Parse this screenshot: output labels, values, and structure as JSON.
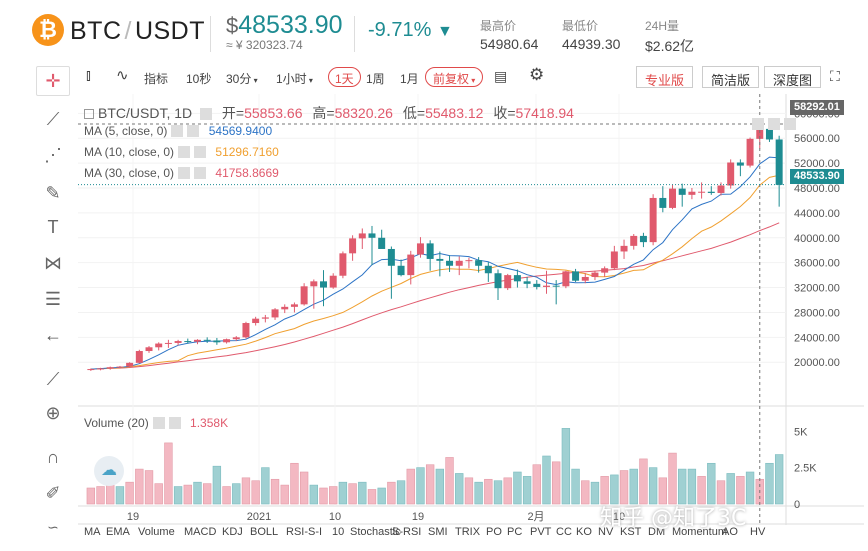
{
  "header": {
    "coin_icon": "bitcoin-icon",
    "coin_symbol": "₿",
    "base": "BTC",
    "quote": "USDT",
    "price_prefix": "$",
    "price": "48533.90",
    "price_cny": "≈ ¥ 320323.74",
    "change": "-9.71%",
    "change_arrow": "▼",
    "high_label": "最高价",
    "high_value": "54980.64",
    "low_label": "最低价",
    "low_value": "44939.30",
    "vol_label": "24H量",
    "vol_value": "$2.62亿"
  },
  "toolbar": {
    "indicators": "指标",
    "s10": "10秒",
    "m30": "30分",
    "h1": "1小时",
    "d1": "1天",
    "w1": "1周",
    "mo1": "1月",
    "adjust": "前复权",
    "pro": "专业版",
    "simple": "简洁版",
    "depth": "深度图"
  },
  "legend": {
    "title": "BTC/USDT, 1D",
    "open_label": "开=",
    "open": "55853.66",
    "high_label": "高=",
    "high": "58320.26",
    "low_label": "低=",
    "low": "55483.12",
    "close_label": "收=",
    "close": "57418.94",
    "ma5_name": "MA (5, close, 0)",
    "ma5_value": "54569.9400",
    "ma10_name": "MA (10, close, 0)",
    "ma10_value": "51296.7160",
    "ma30_name": "MA (30, close, 0)",
    "ma30_value": "41758.8669",
    "volume_name": "Volume (20)",
    "volume_value": "1.358K"
  },
  "axis": {
    "price_ticks": [
      "60000.00",
      "56000.00",
      "52000.00",
      "48000.00",
      "44000.00",
      "40000.00",
      "36000.00",
      "32000.00",
      "28000.00",
      "24000.00",
      "20000.00"
    ],
    "price_tick_values": [
      60000,
      56000,
      52000,
      48000,
      44000,
      40000,
      36000,
      32000,
      28000,
      24000,
      20000
    ],
    "crosshair_price": "58292.01",
    "last_price": "48533.90",
    "vol_ticks": [
      "5K",
      "2.5K",
      "0"
    ],
    "date_ticks": [
      "19",
      "2021",
      "10",
      "19",
      "2月",
      "10"
    ]
  },
  "indicator_tabs": [
    "MA",
    "EMA",
    "Volume",
    "MACD",
    "KDJ",
    "BOLL",
    "RSI-S-I",
    "10",
    "Stochastic",
    "S-RSI",
    "SMI",
    "TRIX",
    "PO",
    "PC",
    "PVT",
    "CC",
    "KO",
    "NV",
    "KST",
    "DM",
    "Momentum",
    "AO",
    "HV"
  ],
  "watermark": "知乎 @知了3C",
  "colors": {
    "up": "#e05a6d",
    "down": "#1e8c92",
    "ma5": "#2d74c6",
    "ma10": "#f0a030",
    "ma30": "#e05a6d",
    "vol_up": "#f3b8c2",
    "vol_down": "#9fd0d2"
  },
  "chart_data": {
    "type": "candlestick",
    "ylim": [
      18000,
      61000
    ],
    "vol_ylim": [
      0,
      5500
    ],
    "candles": [
      [
        18800,
        19000,
        18600,
        18900
      ],
      [
        18900,
        19100,
        18700,
        19000
      ],
      [
        19000,
        19300,
        18800,
        19200
      ],
      [
        19200,
        19400,
        19000,
        19300
      ],
      [
        19300,
        20000,
        19200,
        19900
      ],
      [
        19900,
        22000,
        19800,
        21800
      ],
      [
        21800,
        22600,
        21500,
        22400
      ],
      [
        22400,
        23200,
        21900,
        23000
      ],
      [
        23000,
        23600,
        22300,
        23100
      ],
      [
        23100,
        23600,
        22700,
        23400
      ],
      [
        23400,
        23800,
        23000,
        23300
      ],
      [
        23300,
        23700,
        22900,
        23600
      ],
      [
        23600,
        24000,
        23100,
        23500
      ],
      [
        23500,
        23900,
        22800,
        23200
      ],
      [
        23200,
        23800,
        23000,
        23700
      ],
      [
        23700,
        24200,
        23400,
        24000
      ],
      [
        24000,
        26500,
        23800,
        26300
      ],
      [
        26300,
        27300,
        25900,
        27000
      ],
      [
        27000,
        27600,
        26400,
        27200
      ],
      [
        27200,
        28700,
        26800,
        28500
      ],
      [
        28500,
        29300,
        27900,
        28900
      ],
      [
        28900,
        29600,
        28000,
        29300
      ],
      [
        29300,
        32700,
        29100,
        32200
      ],
      [
        32200,
        33300,
        28600,
        33000
      ],
      [
        33000,
        34800,
        29000,
        32000
      ],
      [
        32000,
        34300,
        31800,
        33900
      ],
      [
        33900,
        37800,
        33500,
        37500
      ],
      [
        37500,
        40400,
        36300,
        39900
      ],
      [
        39900,
        41500,
        38200,
        40700
      ],
      [
        40700,
        41900,
        35600,
        40000
      ],
      [
        40000,
        41300,
        38500,
        38200
      ],
      [
        38200,
        38600,
        30200,
        35500
      ],
      [
        35500,
        36500,
        33800,
        34000
      ],
      [
        34000,
        37900,
        32500,
        37300
      ],
      [
        37300,
        40100,
        36800,
        39100
      ],
      [
        39100,
        39600,
        34700,
        36600
      ],
      [
        36600,
        37800,
        33800,
        36300
      ],
      [
        36300,
        37200,
        34500,
        35500
      ],
      [
        35500,
        37000,
        34000,
        36300
      ],
      [
        36300,
        36800,
        35100,
        36400
      ],
      [
        36400,
        36900,
        34400,
        35500
      ],
      [
        35500,
        36100,
        32900,
        34300
      ],
      [
        34300,
        34900,
        30000,
        31900
      ],
      [
        31900,
        34200,
        31600,
        34000
      ],
      [
        34000,
        34900,
        32000,
        33000
      ],
      [
        33000,
        33700,
        31900,
        32600
      ],
      [
        32600,
        33200,
        31700,
        32100
      ],
      [
        32100,
        34700,
        31000,
        32300
      ],
      [
        32300,
        33200,
        29300,
        32200
      ],
      [
        32200,
        34700,
        31900,
        34600
      ],
      [
        34600,
        35000,
        32900,
        33100
      ],
      [
        33100,
        34300,
        32700,
        33700
      ],
      [
        33700,
        34700,
        33200,
        34400
      ],
      [
        34400,
        35400,
        33700,
        35100
      ],
      [
        35100,
        38700,
        34800,
        37800
      ],
      [
        37800,
        39700,
        36600,
        38700
      ],
      [
        38700,
        40600,
        38100,
        40300
      ],
      [
        40300,
        40800,
        38500,
        39300
      ],
      [
        39300,
        47000,
        38800,
        46400
      ],
      [
        46400,
        48300,
        44100,
        44800
      ],
      [
        44800,
        48600,
        44600,
        47900
      ],
      [
        47900,
        48700,
        45000,
        46900
      ],
      [
        46900,
        48000,
        46200,
        47400
      ],
      [
        47400,
        48900,
        46300,
        47400
      ],
      [
        47400,
        48300,
        46900,
        47200
      ],
      [
        47200,
        48900,
        46800,
        48400
      ],
      [
        48400,
        52600,
        47900,
        52100
      ],
      [
        52100,
        52600,
        49900,
        51600
      ],
      [
        51600,
        56100,
        51300,
        55900
      ],
      [
        55900,
        58300,
        54300,
        57500
      ],
      [
        57500,
        58300,
        55400,
        55800
      ],
      [
        55800,
        56400,
        45000,
        48500
      ]
    ],
    "volumes": [
      [
        1100,
        "up"
      ],
      [
        1200,
        "up"
      ],
      [
        1300,
        "up"
      ],
      [
        1200,
        "down"
      ],
      [
        1500,
        "up"
      ],
      [
        2400,
        "up"
      ],
      [
        2300,
        "up"
      ],
      [
        1400,
        "up"
      ],
      [
        4200,
        "up"
      ],
      [
        1200,
        "down"
      ],
      [
        1300,
        "up"
      ],
      [
        1500,
        "down"
      ],
      [
        1400,
        "up"
      ],
      [
        2600,
        "down"
      ],
      [
        1200,
        "up"
      ],
      [
        1400,
        "down"
      ],
      [
        1800,
        "up"
      ],
      [
        1600,
        "up"
      ],
      [
        2500,
        "down"
      ],
      [
        1700,
        "up"
      ],
      [
        1300,
        "up"
      ],
      [
        2800,
        "up"
      ],
      [
        2200,
        "up"
      ],
      [
        1300,
        "down"
      ],
      [
        1100,
        "up"
      ],
      [
        1200,
        "up"
      ],
      [
        1500,
        "down"
      ],
      [
        1400,
        "up"
      ],
      [
        1500,
        "down"
      ],
      [
        1000,
        "up"
      ],
      [
        1100,
        "down"
      ],
      [
        1500,
        "up"
      ],
      [
        1600,
        "down"
      ],
      [
        2400,
        "up"
      ],
      [
        2500,
        "down"
      ],
      [
        2700,
        "up"
      ],
      [
        2400,
        "down"
      ],
      [
        3200,
        "up"
      ],
      [
        2100,
        "down"
      ],
      [
        1800,
        "up"
      ],
      [
        1500,
        "down"
      ],
      [
        1700,
        "up"
      ],
      [
        1600,
        "down"
      ],
      [
        1800,
        "up"
      ],
      [
        2200,
        "down"
      ],
      [
        1900,
        "down"
      ],
      [
        2700,
        "up"
      ],
      [
        3300,
        "down"
      ],
      [
        2900,
        "up"
      ],
      [
        5200,
        "down"
      ],
      [
        2400,
        "down"
      ],
      [
        1600,
        "up"
      ],
      [
        1500,
        "down"
      ],
      [
        1900,
        "up"
      ],
      [
        2000,
        "down"
      ],
      [
        2300,
        "up"
      ],
      [
        2400,
        "down"
      ],
      [
        3100,
        "up"
      ],
      [
        2500,
        "down"
      ],
      [
        1800,
        "up"
      ],
      [
        3500,
        "up"
      ],
      [
        2400,
        "down"
      ],
      [
        2400,
        "down"
      ],
      [
        1900,
        "up"
      ],
      [
        2800,
        "down"
      ],
      [
        1600,
        "up"
      ],
      [
        2100,
        "down"
      ],
      [
        1900,
        "up"
      ],
      [
        2200,
        "down"
      ],
      [
        1700,
        "up"
      ],
      [
        2800,
        "down"
      ],
      [
        3400,
        "down"
      ]
    ],
    "ma5": [
      18900,
      18980,
      19080,
      19170,
      19340,
      19760,
      20460,
      21190,
      22010,
      22720,
      23040,
      23300,
      23380,
      23400,
      23460,
      23480,
      23700,
      24440,
      25280,
      26010,
      26940,
      27560,
      28460,
      29320,
      29960,
      30930,
      31760,
      32930,
      34040,
      35680,
      36500,
      36570,
      36320,
      36790,
      37440,
      37140,
      37470,
      37130,
      37080,
      36980,
      36400,
      36160,
      35410,
      35060,
      34710,
      34060,
      33660,
      32760,
      32480,
      32920,
      32770,
      32790,
      32880,
      33310,
      33780,
      34780,
      35730,
      36440,
      38080,
      39230,
      41300,
      42890,
      44640,
      45360,
      45890,
      47000,
      47020,
      48230,
      49800,
      51880,
      52960,
      52830
    ],
    "ma10": [
      18900,
      18950,
      19030,
      19090,
      19260,
      19460,
      19710,
      19950,
      20130,
      20240,
      21050,
      21460,
      21720,
      21990,
      22270,
      22590,
      22900,
      23400,
      23960,
      24580,
      25000,
      25400,
      26080,
      26630,
      27020,
      27480,
      28000,
      28820,
      29710,
      30640,
      31420,
      32040,
      32650,
      33450,
      34120,
      34520,
      34870,
      35010,
      34950,
      34930,
      34740,
      35050,
      35430,
      35760,
      36050,
      35620,
      35260,
      34980,
      34920,
      34810,
      34480,
      34250,
      33760,
      33730,
      33940,
      34320,
      34750,
      34860,
      35700,
      36390,
      37420,
      38550,
      39860,
      41060,
      41740,
      42710,
      43860,
      45020,
      46480,
      48470,
      49700,
      50040
    ],
    "ma30": [
      18900,
      18950,
      19000,
      19050,
      19150,
      19300,
      19450,
      19650,
      19850,
      20050,
      20250,
      20450,
      20650,
      20850,
      21050,
      21300,
      21550,
      21850,
      22150,
      22500,
      22850,
      23250,
      23700,
      24150,
      24650,
      25150,
      25650,
      26200,
      26800,
      27400,
      27950,
      28450,
      28900,
      29400,
      29900,
      30350,
      30800,
      31250,
      31650,
      32000,
      32350,
      32650,
      32950,
      33200,
      33450,
      33650,
      33850,
      34000,
      34150,
      34300,
      34450,
      34550,
      34650,
      34750,
      34900,
      35050,
      35300,
      35550,
      35950,
      36300,
      36700,
      37100,
      37500,
      37900,
      38300,
      38800,
      39300,
      39900,
      40500,
      41150,
      41750,
      42400
    ]
  }
}
